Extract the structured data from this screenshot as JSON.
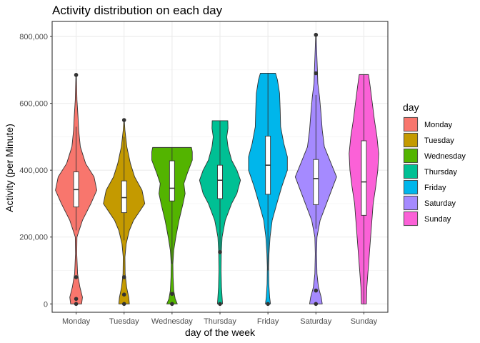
{
  "chart_data": {
    "type": "violin",
    "title": "Activity distribution on each day",
    "xlabel": "day of the week",
    "ylabel": "Activity (per Minute)",
    "ylim": [
      -25000,
      845000
    ],
    "y_ticks": [
      0,
      200000,
      400000,
      600000,
      800000
    ],
    "y_tick_labels": [
      "0",
      "200,000",
      "400,000",
      "600,000",
      "800,000"
    ],
    "grid": true,
    "legend": {
      "title": "day",
      "position": "right"
    },
    "categories": [
      "Monday",
      "Tuesday",
      "Wednesday",
      "Thursday",
      "Friday",
      "Saturday",
      "Sunday"
    ],
    "series": [
      {
        "name": "Monday",
        "color": "#F8766D",
        "box": {
          "q1": 290000,
          "median": 342000,
          "q3": 395000,
          "whisker_low": 220000,
          "whisker_high": 530000
        },
        "outliers": [
          0,
          15000,
          80000,
          685000
        ],
        "violin": [
          [
            0,
            0.26
          ],
          [
            20000,
            0.3
          ],
          [
            50000,
            0.18
          ],
          [
            90000,
            0.07
          ],
          [
            150000,
            0.03
          ],
          [
            200000,
            0.04
          ],
          [
            250000,
            0.3
          ],
          [
            300000,
            0.7
          ],
          [
            340000,
            0.98
          ],
          [
            380000,
            0.85
          ],
          [
            420000,
            0.45
          ],
          [
            470000,
            0.2
          ],
          [
            520000,
            0.12
          ],
          [
            560000,
            0.09
          ],
          [
            610000,
            0.04
          ],
          [
            650000,
            0.025
          ],
          [
            685000,
            0.01
          ]
        ]
      },
      {
        "name": "Tuesday",
        "color": "#C49A00",
        "box": {
          "q1": 273000,
          "median": 318000,
          "q3": 368000,
          "whisker_low": 190000,
          "whisker_high": 500000
        },
        "outliers": [
          0,
          28000,
          80000,
          550000
        ],
        "violin": [
          [
            0,
            0.25
          ],
          [
            20000,
            0.22
          ],
          [
            50000,
            0.12
          ],
          [
            90000,
            0.05
          ],
          [
            140000,
            0.04
          ],
          [
            180000,
            0.1
          ],
          [
            220000,
            0.25
          ],
          [
            250000,
            0.45
          ],
          [
            300000,
            0.98
          ],
          [
            340000,
            0.85
          ],
          [
            380000,
            0.5
          ],
          [
            420000,
            0.3
          ],
          [
            470000,
            0.13
          ],
          [
            520000,
            0.04
          ],
          [
            550000,
            0.01
          ]
        ]
      },
      {
        "name": "Wednesday",
        "color": "#53B400",
        "box": {
          "q1": 308000,
          "median": 346000,
          "q3": 428000,
          "whisker_low": 120000,
          "whisker_high": 468000
        },
        "outliers": [
          0,
          30000
        ],
        "violin": [
          [
            0,
            0.25
          ],
          [
            15000,
            0.15
          ],
          [
            40000,
            0.08
          ],
          [
            80000,
            0.05
          ],
          [
            120000,
            0.04
          ],
          [
            160000,
            0.08
          ],
          [
            200000,
            0.18
          ],
          [
            250000,
            0.33
          ],
          [
            300000,
            0.52
          ],
          [
            330000,
            0.62
          ],
          [
            360000,
            0.56
          ],
          [
            390000,
            0.72
          ],
          [
            430000,
            0.96
          ],
          [
            455000,
            0.96
          ],
          [
            468000,
            0.92
          ]
        ]
      },
      {
        "name": "Thursday",
        "color": "#00C094",
        "box": {
          "q1": 315000,
          "median": 370000,
          "q3": 415000,
          "whisker_low": 150000,
          "whisker_high": 548000
        },
        "outliers": [
          0,
          155000
        ],
        "violin": [
          [
            0,
            0.12
          ],
          [
            20000,
            0.1
          ],
          [
            50000,
            0.07
          ],
          [
            100000,
            0.05
          ],
          [
            150000,
            0.06
          ],
          [
            200000,
            0.1
          ],
          [
            250000,
            0.25
          ],
          [
            300000,
            0.55
          ],
          [
            330000,
            0.8
          ],
          [
            370000,
            0.97
          ],
          [
            400000,
            0.8
          ],
          [
            430000,
            0.55
          ],
          [
            470000,
            0.38
          ],
          [
            500000,
            0.32
          ],
          [
            525000,
            0.38
          ],
          [
            548000,
            0.37
          ]
        ]
      },
      {
        "name": "Friday",
        "color": "#00B6EB",
        "box": {
          "q1": 328000,
          "median": 415000,
          "q3": 502000,
          "whisker_low": 100000,
          "whisker_high": 690000
        },
        "outliers": [
          0
        ],
        "violin": [
          [
            0,
            0.12
          ],
          [
            20000,
            0.08
          ],
          [
            60000,
            0.04
          ],
          [
            110000,
            0.03
          ],
          [
            150000,
            0.05
          ],
          [
            200000,
            0.1
          ],
          [
            250000,
            0.2
          ],
          [
            300000,
            0.42
          ],
          [
            350000,
            0.65
          ],
          [
            400000,
            0.92
          ],
          [
            440000,
            0.92
          ],
          [
            480000,
            0.75
          ],
          [
            530000,
            0.6
          ],
          [
            580000,
            0.58
          ],
          [
            630000,
            0.55
          ],
          [
            670000,
            0.45
          ],
          [
            690000,
            0.36
          ]
        ]
      },
      {
        "name": "Saturday",
        "color": "#A58AFF",
        "box": {
          "q1": 297000,
          "median": 375000,
          "q3": 432000,
          "whisker_low": 225000,
          "whisker_high": 625000
        },
        "outliers": [
          0,
          40000,
          690000,
          805000
        ],
        "violin": [
          [
            0,
            0.3
          ],
          [
            20000,
            0.25
          ],
          [
            50000,
            0.12
          ],
          [
            90000,
            0.05
          ],
          [
            150000,
            0.03
          ],
          [
            200000,
            0.05
          ],
          [
            250000,
            0.2
          ],
          [
            300000,
            0.5
          ],
          [
            350000,
            0.8
          ],
          [
            380000,
            0.98
          ],
          [
            420000,
            0.72
          ],
          [
            470000,
            0.4
          ],
          [
            520000,
            0.3
          ],
          [
            570000,
            0.24
          ],
          [
            620000,
            0.17
          ],
          [
            660000,
            0.09
          ],
          [
            700000,
            0.07
          ],
          [
            750000,
            0.04
          ],
          [
            805000,
            0.01
          ]
        ]
      },
      {
        "name": "Sunday",
        "color": "#FB61D7",
        "box": {
          "q1": 265000,
          "median": 365000,
          "q3": 488000,
          "whisker_low": 0,
          "whisker_high": 686000
        },
        "outliers": [],
        "violin": [
          [
            0,
            0.12
          ],
          [
            50000,
            0.14
          ],
          [
            100000,
            0.2
          ],
          [
            150000,
            0.26
          ],
          [
            200000,
            0.32
          ],
          [
            250000,
            0.38
          ],
          [
            300000,
            0.44
          ],
          [
            350000,
            0.56
          ],
          [
            400000,
            0.66
          ],
          [
            450000,
            0.7
          ],
          [
            500000,
            0.62
          ],
          [
            550000,
            0.5
          ],
          [
            600000,
            0.4
          ],
          [
            650000,
            0.3
          ],
          [
            686000,
            0.22
          ]
        ]
      }
    ]
  }
}
